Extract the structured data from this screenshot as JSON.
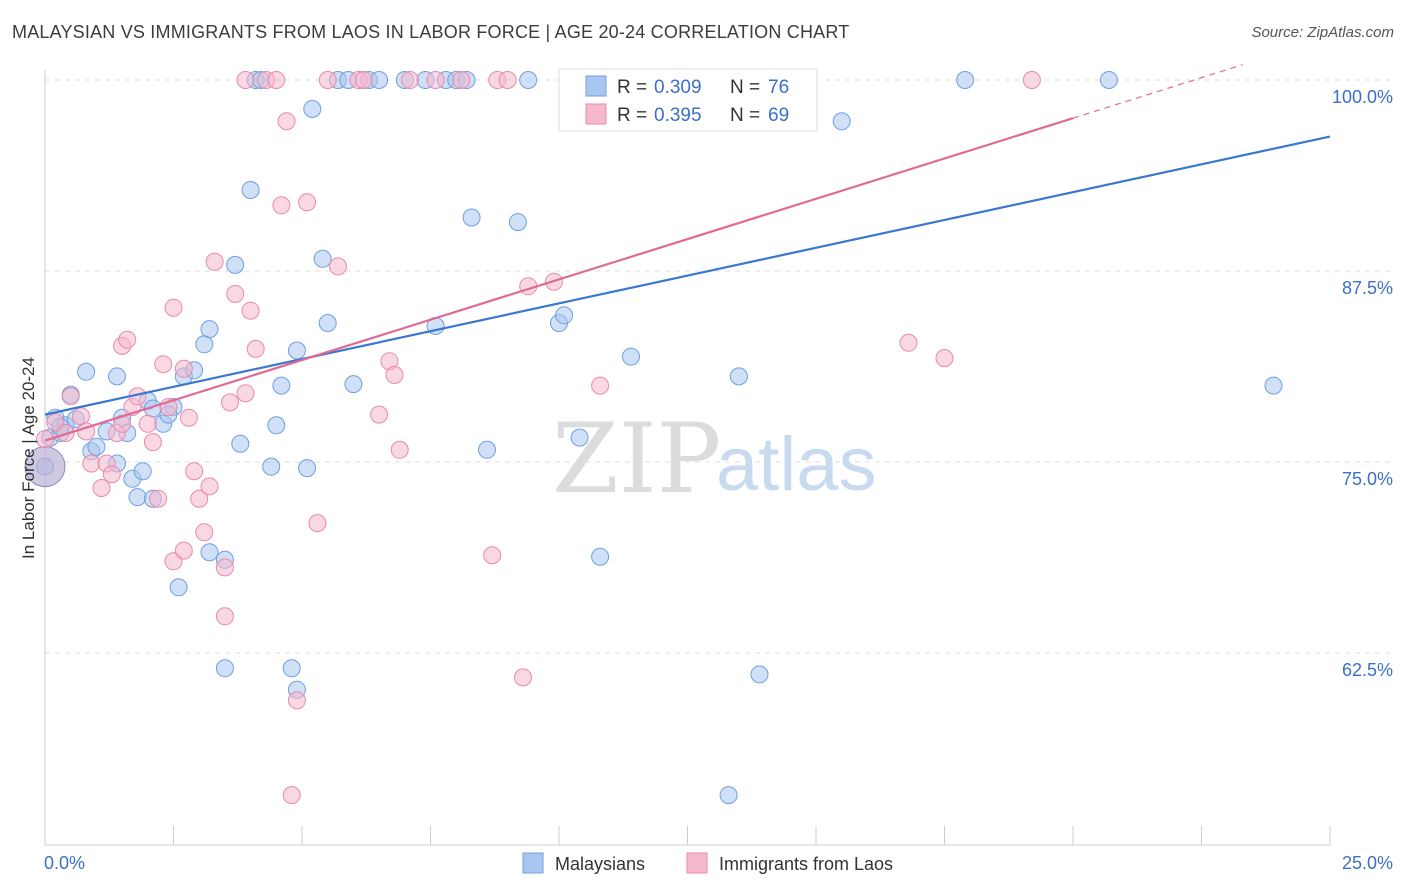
{
  "header": {
    "title": "MALAYSIAN VS IMMIGRANTS FROM LAOS IN LABOR FORCE | AGE 20-24 CORRELATION CHART",
    "source": "Source: ZipAtlas.com"
  },
  "watermark": {
    "zip": "ZIP",
    "atlas": "atlas"
  },
  "colors": {
    "blue": "#3a78d0",
    "blue_fill": "#a9c7ee",
    "pink": "#e06a96",
    "pink_fill": "#f5b8cc",
    "grid": "#dddddd",
    "axis_label": "#3b6fc9"
  },
  "chart_data": {
    "type": "scatter",
    "title": "MALAYSIAN VS IMMIGRANTS FROM LAOS IN LABOR FORCE | AGE 20-24 CORRELATION CHART",
    "xlabel": "",
    "ylabel": "In Labor Force | Age 20-24",
    "xlim": [
      0,
      25
    ],
    "ylim": [
      50,
      101
    ],
    "x_tick_labels": [
      "0.0%",
      "25.0%"
    ],
    "y_ticks": [
      62.5,
      75.0,
      87.5,
      100.0
    ],
    "y_tick_labels": [
      "62.5%",
      "75.0%",
      "87.5%",
      "100.0%"
    ],
    "grid": true,
    "legend": {
      "position": "top-center",
      "entries": [
        {
          "r_label": "R =",
          "r_value": "0.309",
          "n_label": "N =",
          "n_value": "76"
        },
        {
          "r_label": "R =",
          "r_value": "0.395",
          "n_label": "N =",
          "n_value": "69"
        }
      ]
    },
    "bottom_legend": [
      "Malaysians",
      "Immigrants from Laos"
    ],
    "series": [
      {
        "name": "Malaysians",
        "color": "#3a78d0",
        "trend": {
          "x": [
            0,
            25
          ],
          "y": [
            78.1,
            96.3
          ]
        },
        "points": [
          [
            0.0,
            74.7
          ],
          [
            0.1,
            76.6
          ],
          [
            0.2,
            77.9
          ],
          [
            0.3,
            76.9
          ],
          [
            0.4,
            77.4
          ],
          [
            0.5,
            79.4
          ],
          [
            0.6,
            77.8
          ],
          [
            0.9,
            75.7
          ],
          [
            1.0,
            76.0
          ],
          [
            1.2,
            77.0
          ],
          [
            1.4,
            74.9
          ],
          [
            0.8,
            80.9
          ],
          [
            1.4,
            80.6
          ],
          [
            1.5,
            77.9
          ],
          [
            1.7,
            73.9
          ],
          [
            1.9,
            74.4
          ],
          [
            1.8,
            72.7
          ],
          [
            2.0,
            79.0
          ],
          [
            2.5,
            78.6
          ],
          [
            2.3,
            77.5
          ],
          [
            2.1,
            78.5
          ],
          [
            2.4,
            78.1
          ],
          [
            2.7,
            80.6
          ],
          [
            2.9,
            81.0
          ],
          [
            3.1,
            82.7
          ],
          [
            3.2,
            83.7
          ],
          [
            3.7,
            87.9
          ],
          [
            4.0,
            92.8
          ],
          [
            3.8,
            76.2
          ],
          [
            4.1,
            100.0
          ],
          [
            4.2,
            100.0
          ],
          [
            4.4,
            74.7
          ],
          [
            4.5,
            77.4
          ],
          [
            4.6,
            80.0
          ],
          [
            4.8,
            61.5
          ],
          [
            4.9,
            60.1
          ],
          [
            4.9,
            82.3
          ],
          [
            5.1,
            74.6
          ],
          [
            5.2,
            98.1
          ],
          [
            5.5,
            84.1
          ],
          [
            5.4,
            88.3
          ],
          [
            5.7,
            100.0
          ],
          [
            5.9,
            100.0
          ],
          [
            6.0,
            80.1
          ],
          [
            6.3,
            100.0
          ],
          [
            6.5,
            100.0
          ],
          [
            7.0,
            100.0
          ],
          [
            7.4,
            100.0
          ],
          [
            7.8,
            100.0
          ],
          [
            7.6,
            83.9
          ],
          [
            8.0,
            100.0
          ],
          [
            8.2,
            100.0
          ],
          [
            8.3,
            91.0
          ],
          [
            8.6,
            75.8
          ],
          [
            9.2,
            90.7
          ],
          [
            9.4,
            100.0
          ],
          [
            10.0,
            84.1
          ],
          [
            10.1,
            84.6
          ],
          [
            10.4,
            76.6
          ],
          [
            10.8,
            68.8
          ],
          [
            11.4,
            81.9
          ],
          [
            11.7,
            100.0
          ],
          [
            13.5,
            80.6
          ],
          [
            13.9,
            61.1
          ],
          [
            15.5,
            97.3
          ],
          [
            17.9,
            100.0
          ],
          [
            20.7,
            100.0
          ],
          [
            23.9,
            80.0
          ],
          [
            2.6,
            66.8
          ],
          [
            3.2,
            69.1
          ],
          [
            3.5,
            68.6
          ],
          [
            3.5,
            61.5
          ],
          [
            2.1,
            72.6
          ],
          [
            13.3,
            53.2
          ],
          [
            1.6,
            76.9
          ],
          [
            0.3,
            77.3
          ]
        ]
      },
      {
        "name": "Immigrants from Laos",
        "color": "#e06a96",
        "trend": {
          "x": [
            0,
            20
          ],
          "y": [
            76.4,
            97.5
          ]
        },
        "trend_dashed": {
          "x": [
            20,
            23.3
          ],
          "y": [
            97.5,
            101.0
          ]
        },
        "points": [
          [
            0.0,
            76.5
          ],
          [
            0.2,
            77.6
          ],
          [
            0.4,
            76.9
          ],
          [
            0.5,
            79.3
          ],
          [
            0.7,
            78.0
          ],
          [
            0.8,
            77.0
          ],
          [
            0.9,
            74.9
          ],
          [
            1.1,
            73.3
          ],
          [
            1.2,
            74.9
          ],
          [
            1.3,
            74.2
          ],
          [
            1.4,
            76.9
          ],
          [
            1.5,
            77.5
          ],
          [
            1.5,
            82.6
          ],
          [
            1.6,
            83.0
          ],
          [
            1.7,
            78.6
          ],
          [
            1.8,
            79.3
          ],
          [
            2.0,
            77.5
          ],
          [
            2.1,
            76.3
          ],
          [
            2.2,
            72.6
          ],
          [
            2.3,
            81.4
          ],
          [
            2.4,
            78.6
          ],
          [
            2.5,
            68.5
          ],
          [
            2.5,
            85.1
          ],
          [
            2.7,
            69.2
          ],
          [
            2.7,
            81.1
          ],
          [
            2.8,
            77.9
          ],
          [
            2.9,
            74.4
          ],
          [
            3.0,
            72.6
          ],
          [
            3.1,
            70.4
          ],
          [
            3.2,
            73.4
          ],
          [
            3.3,
            88.1
          ],
          [
            3.5,
            64.9
          ],
          [
            3.5,
            68.1
          ],
          [
            3.6,
            78.9
          ],
          [
            3.7,
            86.0
          ],
          [
            3.9,
            79.5
          ],
          [
            3.9,
            100.0
          ],
          [
            4.0,
            84.9
          ],
          [
            4.1,
            82.4
          ],
          [
            4.3,
            100.0
          ],
          [
            4.5,
            100.0
          ],
          [
            4.6,
            91.8
          ],
          [
            4.7,
            97.3
          ],
          [
            4.8,
            53.2
          ],
          [
            4.9,
            59.4
          ],
          [
            5.1,
            92.0
          ],
          [
            5.3,
            71.0
          ],
          [
            5.5,
            100.0
          ],
          [
            5.7,
            87.8
          ],
          [
            6.1,
            100.0
          ],
          [
            6.2,
            100.0
          ],
          [
            6.5,
            78.1
          ],
          [
            6.7,
            81.6
          ],
          [
            6.8,
            80.7
          ],
          [
            6.9,
            75.8
          ],
          [
            7.1,
            100.0
          ],
          [
            7.6,
            100.0
          ],
          [
            8.1,
            100.0
          ],
          [
            8.7,
            68.9
          ],
          [
            8.8,
            100.0
          ],
          [
            9.0,
            100.0
          ],
          [
            9.3,
            60.9
          ],
          [
            9.4,
            86.5
          ],
          [
            9.9,
            86.8
          ],
          [
            10.8,
            80.0
          ],
          [
            11.1,
            100.0
          ],
          [
            16.8,
            82.8
          ],
          [
            17.5,
            81.8
          ],
          [
            19.2,
            100.0
          ]
        ]
      }
    ]
  }
}
